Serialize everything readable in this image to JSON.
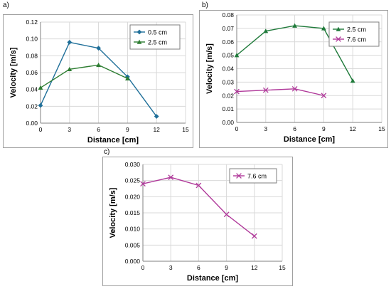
{
  "chart_data": [
    {
      "panel": "a)",
      "type": "line",
      "xlabel": "Distance [cm]",
      "ylabel": "Velocity [m/s]",
      "xlim": [
        0,
        15
      ],
      "ylim": [
        0,
        0.12
      ],
      "x_ticks": [
        "0",
        "3",
        "6",
        "9",
        "12",
        "15"
      ],
      "y_ticks": [
        "0.00",
        "0.02",
        "0.04",
        "0.06",
        "0.08",
        "0.10",
        "0.12"
      ],
      "grid": true,
      "legend_position": "top-right",
      "series": [
        {
          "name": "0.5 cm",
          "marker": "diamond",
          "color": "#1f6f99",
          "x": [
            0,
            3,
            6,
            9,
            12
          ],
          "y": [
            0.021,
            0.096,
            0.089,
            0.055,
            0.008
          ]
        },
        {
          "name": "2.5 cm",
          "marker": "triangle",
          "color": "#2e7d32",
          "x": [
            0,
            3,
            6,
            9
          ],
          "y": [
            0.042,
            0.064,
            0.069,
            0.053
          ]
        }
      ]
    },
    {
      "panel": "b)",
      "type": "line",
      "xlabel": "Distance [cm]",
      "ylabel": "Velocity [m/s]",
      "xlim": [
        0,
        15
      ],
      "ylim": [
        0,
        0.08
      ],
      "x_ticks": [
        "0",
        "3",
        "6",
        "9",
        "12",
        "15"
      ],
      "y_ticks": [
        "0.00",
        "0.01",
        "0.02",
        "0.03",
        "0.04",
        "0.05",
        "0.06",
        "0.07",
        "0.08"
      ],
      "grid": true,
      "legend_position": "top-right",
      "series": [
        {
          "name": "2.5 cm",
          "marker": "triangle",
          "color": "#1f7a3a",
          "x": [
            0,
            3,
            6,
            9,
            12
          ],
          "y": [
            0.05,
            0.068,
            0.072,
            0.07,
            0.031
          ]
        },
        {
          "name": "7.6 cm",
          "marker": "x",
          "color": "#b0399a",
          "x": [
            0,
            3,
            6,
            9
          ],
          "y": [
            0.023,
            0.024,
            0.025,
            0.02
          ]
        }
      ]
    },
    {
      "panel": "c)",
      "type": "line",
      "xlabel": "Distance [cm]",
      "ylabel": "Velocity [m/s]",
      "xlim": [
        0,
        15
      ],
      "ylim": [
        0,
        0.03
      ],
      "x_ticks": [
        "0",
        "3",
        "6",
        "9",
        "12",
        "15"
      ],
      "y_ticks": [
        "0.000",
        "0.005",
        "0.010",
        "0.015",
        "0.020",
        "0.025",
        "0.030"
      ],
      "grid": true,
      "legend_position": "top-right",
      "series": [
        {
          "name": "7.6 cm",
          "marker": "x",
          "color": "#b0399a",
          "x": [
            0,
            3,
            6,
            9,
            12
          ],
          "y": [
            0.024,
            0.026,
            0.0235,
            0.0145,
            0.0078
          ]
        }
      ]
    }
  ]
}
